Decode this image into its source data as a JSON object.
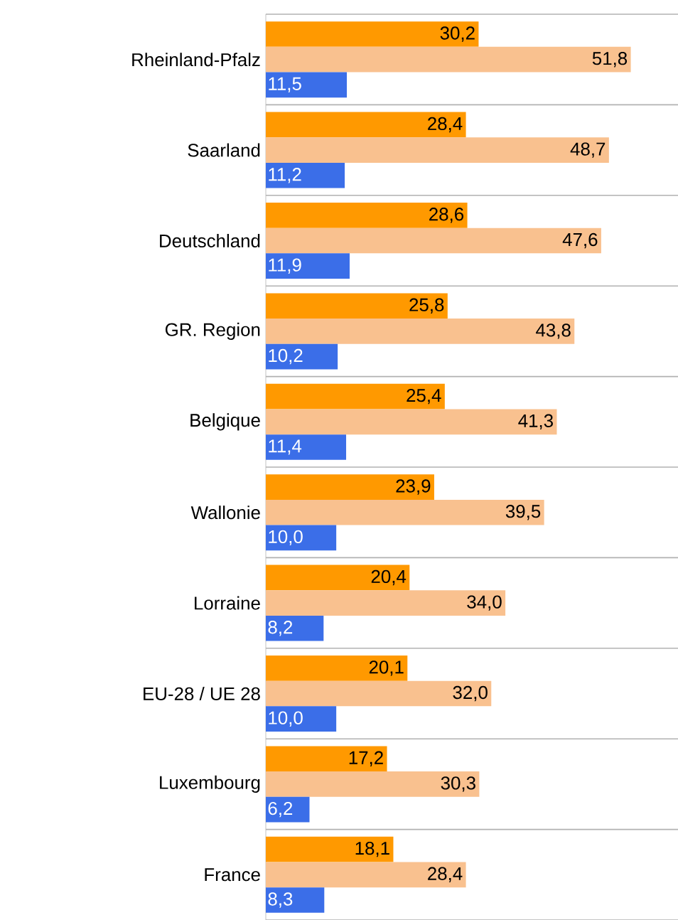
{
  "chart_data": {
    "type": "bar",
    "orientation": "horizontal",
    "grid": "y",
    "xlim": [
      0,
      58.5
    ],
    "categories": [
      "Rheinland-Pfalz",
      "Saarland",
      "Deutschland",
      "GR. Region",
      "Belgique",
      "Wallonie",
      "Lorraine",
      "EU-28 / UE 28",
      "Luxembourg",
      "France"
    ],
    "series": [
      {
        "color": "#ff9900",
        "values": [
          30.2,
          28.4,
          28.6,
          25.8,
          25.4,
          23.9,
          20.4,
          20.1,
          17.2,
          18.1
        ],
        "value_labels": [
          "30,2",
          "28,4",
          "28,6",
          "25,8",
          "25,4",
          "23,9",
          "20,4",
          "20,1",
          "17,2",
          "18,1"
        ]
      },
      {
        "color": "#f9c18f",
        "values": [
          51.8,
          48.7,
          47.6,
          43.8,
          41.3,
          39.5,
          34.0,
          32.0,
          30.3,
          28.4
        ],
        "value_labels": [
          "51,8",
          "48,7",
          "47,6",
          "43,8",
          "41,3",
          "39,5",
          "34,0",
          "32,0",
          "30,3",
          "28,4"
        ]
      },
      {
        "color": "#3b6ee8",
        "values": [
          11.5,
          11.2,
          11.9,
          10.2,
          11.4,
          10.0,
          8.2,
          10.0,
          6.2,
          8.3
        ],
        "value_labels": [
          "11,5",
          "11,2",
          "11,9",
          "10,2",
          "11,4",
          "10,0",
          "8,2",
          "10,0",
          "6,2",
          "8,3"
        ]
      }
    ]
  }
}
